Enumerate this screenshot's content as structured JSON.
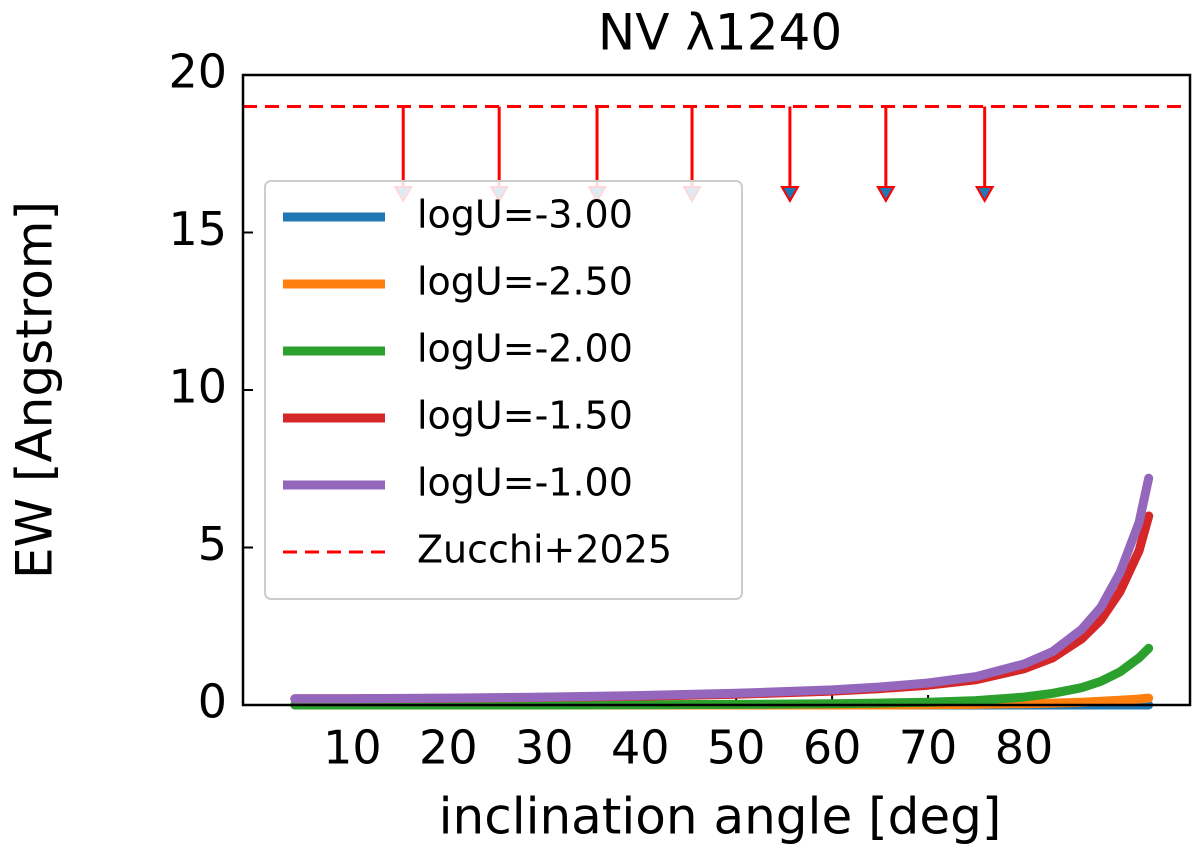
{
  "chart_data": {
    "type": "line",
    "title": "NV λ1240",
    "xlabel": "inclination angle [deg]",
    "ylabel": "EW [Angstrom]",
    "x": [
      4,
      10,
      20,
      30,
      40,
      50,
      60,
      65,
      70,
      75,
      80,
      83,
      86,
      88,
      90,
      92,
      93
    ],
    "series": [
      {
        "name": "logU=-3.00",
        "color": "#1f77b4",
        "values": [
          0,
          0,
          0,
          0,
          0,
          0,
          0,
          0,
          0,
          0,
          0,
          0,
          0,
          0,
          0,
          0,
          0
        ]
      },
      {
        "name": "logU=-2.50",
        "color": "#ff7f0e",
        "values": [
          0,
          0,
          0,
          0,
          0,
          0,
          0,
          0,
          0.01,
          0.02,
          0.04,
          0.06,
          0.09,
          0.12,
          0.15,
          0.19,
          0.22
        ]
      },
      {
        "name": "logU=-2.00",
        "color": "#2ca02c",
        "values": [
          0,
          0,
          0,
          0,
          0.01,
          0.02,
          0.04,
          0.06,
          0.09,
          0.14,
          0.25,
          0.37,
          0.55,
          0.75,
          1.05,
          1.5,
          1.8
        ]
      },
      {
        "name": "logU=-1.50",
        "color": "#d62728",
        "values": [
          0.2,
          0.2,
          0.21,
          0.24,
          0.28,
          0.34,
          0.44,
          0.52,
          0.63,
          0.8,
          1.15,
          1.5,
          2.1,
          2.7,
          3.6,
          4.9,
          6.0
        ]
      },
      {
        "name": "logU=-1.00",
        "color": "#9467bd",
        "values": [
          0.2,
          0.2,
          0.22,
          0.25,
          0.3,
          0.37,
          0.48,
          0.57,
          0.7,
          0.9,
          1.3,
          1.7,
          2.4,
          3.1,
          4.2,
          5.8,
          7.2
        ]
      }
    ],
    "upper_limit": {
      "name": "Zucchi+2025",
      "color": "#ff0000",
      "value": 19,
      "arrow_x": [
        15.3,
        25.3,
        35.5,
        45.4,
        55.6,
        65.6,
        75.9
      ],
      "arrow_to": 16,
      "arrow_head_color": "#1f77b4"
    },
    "xlim": [
      -1.4,
      97.3
    ],
    "xticks": [
      10,
      20,
      30,
      40,
      50,
      60,
      70,
      80
    ],
    "ylim": [
      0,
      20
    ],
    "yticks": [
      0,
      5,
      10,
      15,
      20
    ],
    "legend": "center left"
  }
}
